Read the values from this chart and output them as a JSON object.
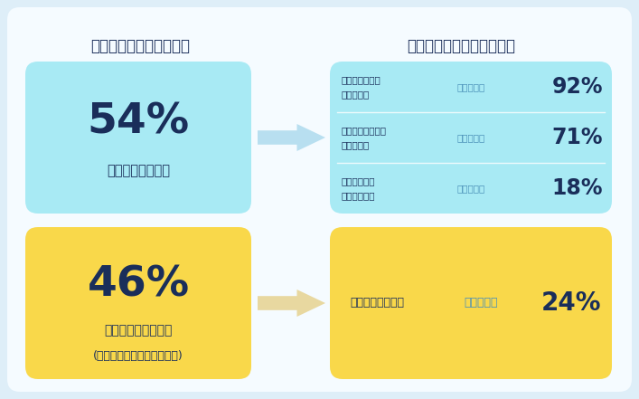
{
  "bg_color": "#deeef8",
  "inner_bg": "#f5fbff",
  "title_left": "問題・不満発生時の行動",
  "title_right": "不満対応後のリピート行動",
  "box_top_left_color": "#a8eaf4",
  "box_top_left_percent": "54%",
  "box_top_left_label": "直接不満を伝える",
  "box_bottom_left_color": "#f9d84a",
  "box_bottom_left_percent": "46%",
  "box_bottom_left_label1": "直接不満を伝えない",
  "box_bottom_left_label2": "(サイレントマジョリティー)",
  "box_top_right_color": "#a8eaf4",
  "box_top_right_items": [
    {
      "label1": "対応が迅速かつ",
      "label2": "満足な場合",
      "rate_label": "リピート率",
      "rate": "92%"
    },
    {
      "label1": "時間はかかったが",
      "label2": "満足な場合",
      "rate_label": "リピート率",
      "rate": "71%"
    },
    {
      "label1": "不満な対応で",
      "label2": "終わった場合",
      "rate_label": "リピート率",
      "rate": "18%"
    }
  ],
  "box_bottom_right_color": "#f9d84a",
  "box_bottom_right_label": "不満非表明の場合",
  "box_bottom_right_rate_label": "リピート率",
  "box_bottom_right_rate": "24%",
  "arrow_top_color": "#b8dff0",
  "arrow_bottom_color": "#e8d8a0",
  "text_dark": "#1a2e5a",
  "text_rate_label": "#4a90b8",
  "text_rate_num": "#1a2e5a",
  "divider_color": "#ffffff"
}
